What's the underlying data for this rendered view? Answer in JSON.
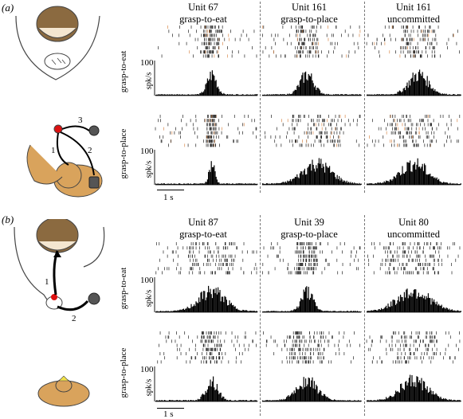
{
  "panels": [
    {
      "label": "(a)",
      "units": [
        {
          "line1": "Unit 67",
          "line2": "grasp-to-eat"
        },
        {
          "line1": "Unit 161",
          "line2": "grasp-to-place"
        },
        {
          "line1": "Unit 161",
          "line2": "uncommitted"
        }
      ],
      "rows": [
        {
          "condition": "grasp-to-eat",
          "ymax": "100",
          "yunit": "spk/s"
        },
        {
          "condition": "grasp-to-place",
          "ymax": "100",
          "yunit": "spk/s"
        }
      ],
      "scale": "1 s",
      "movement_labels": [
        "3",
        "1",
        "2"
      ]
    },
    {
      "label": "(b)",
      "units": [
        {
          "line1": "Unit 87",
          "line2": "grasp-to-eat"
        },
        {
          "line1": "Unit 39",
          "line2": "grasp-to-place"
        },
        {
          "line1": "Unit 80",
          "line2": "uncommitted"
        }
      ],
      "rows": [
        {
          "condition": "grasp-to-eat",
          "ymax": "100",
          "yunit": "spk/s"
        },
        {
          "condition": "grasp-to-place",
          "ymax": "100",
          "yunit": "spk/s"
        }
      ],
      "scale": "1 s",
      "movement_labels": [
        "1",
        "2"
      ]
    }
  ],
  "colors": {
    "raster": "#222222",
    "hist": "#000000",
    "orange": "#d9884a",
    "divider": "#777777",
    "skin": "#d9a35c",
    "hair": "#8b6a40",
    "object": "#555555"
  }
}
